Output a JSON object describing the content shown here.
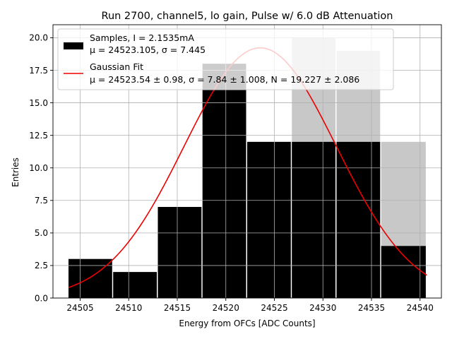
{
  "chart_data": {
    "type": "bar",
    "title": "Run 2700, channel5, lo gain, Pulse w/ 6.0 dB Attenuation",
    "xlabel": "Energy from OFCs [ADC Counts]",
    "ylabel": "Entries",
    "xlim": [
      24502.2,
      24542.2
    ],
    "ylim": [
      0,
      21
    ],
    "xticks": [
      "24505",
      "24510",
      "24515",
      "24520",
      "24525",
      "24530",
      "24535",
      "24540"
    ],
    "xtick_values": [
      24505,
      24510,
      24515,
      24520,
      24525,
      24530,
      24535,
      24540
    ],
    "yticks": [
      "0.0",
      "2.5",
      "5.0",
      "7.5",
      "10.0",
      "12.5",
      "15.0",
      "17.5",
      "20.0"
    ],
    "ytick_values": [
      0,
      2.5,
      5,
      7.5,
      10,
      12.5,
      15,
      17.5,
      20
    ],
    "grid": true,
    "legend_position": "top-left",
    "bin_edges": [
      24503.8,
      24508.8,
      24513.8,
      24518.8,
      24523.8,
      24528.8,
      24533.8,
      24538.8
    ],
    "bins": [
      {
        "x0": 24503.8,
        "x1": 24508.8,
        "count": 3
      },
      {
        "x0": 24508.8,
        "x1": 24513.8,
        "count": 2
      },
      {
        "x0": 24513.8,
        "x1": 24518.8,
        "count": 7
      },
      {
        "x0": 24518.8,
        "x1": 24523.8,
        "count": 12
      },
      {
        "x0": 24523.8,
        "x1": 24528.8,
        "count": 12
      },
      {
        "x0": 24528.8,
        "x1": 24533.8,
        "count": 12
      },
      {
        "x0": 24533.8,
        "x1": 24538.8,
        "count": 4
      },
      {
        "x0": 24538.8,
        "x1": 24540.7,
        "count": 3
      }
    ],
    "hist_black": [
      {
        "x0": 24503.8,
        "x1": 24508.0,
        "count": 3
      },
      {
        "x0": 24508.2,
        "x1": 24512.8,
        "count": 2
      },
      {
        "x0": 24512.9,
        "x1": 24517.6,
        "count": 7
      },
      {
        "x0": 24517.6,
        "x1": 24522.2,
        "count": 18
      },
      {
        "x0": 24522.2,
        "x1": 24526.8,
        "count": 12
      },
      {
        "x0": 24526.8,
        "x1": 24531.4,
        "count": 20
      },
      {
        "x0": 24531.4,
        "x1": 24536.0,
        "count": 19
      },
      {
        "x0": 24536.0,
        "x1": 24540.7,
        "count": 12
      }
    ],
    "series": [
      {
        "name": "Samples, I = 2.1535mA",
        "name_line2": "μ = 24523.105, σ = 7.445",
        "kind": "histogram",
        "color": "#000000",
        "bins": [
          {
            "x0": 24503.8,
            "x1": 24508.4,
            "count": 3
          },
          {
            "x0": 24508.4,
            "x1": 24513.0,
            "count": 2
          },
          {
            "x0": 24513.0,
            "x1": 24517.6,
            "count": 7
          },
          {
            "x0": 24517.6,
            "x1": 24522.2,
            "count": 18
          },
          {
            "x0": 24522.2,
            "x1": 24526.8,
            "count": 12
          },
          {
            "x0": 24526.8,
            "x1": 24531.4,
            "count": 20
          },
          {
            "x0": 24531.4,
            "x1": 24536.0,
            "count": 19
          },
          {
            "x0": 24536.0,
            "x1": 24540.7,
            "count": 12
          }
        ]
      },
      {
        "name": "Gaussian Fit",
        "name_line2": "μ = 24523.54 ± 0.98, σ = 7.84 ± 1.008, N = 19.227 ± 2.086",
        "kind": "line",
        "color": "#ee0000",
        "mu": 24523.54,
        "sigma": 7.84,
        "N": 19.227,
        "x_range": [
          24503.8,
          24540.7
        ]
      }
    ]
  }
}
